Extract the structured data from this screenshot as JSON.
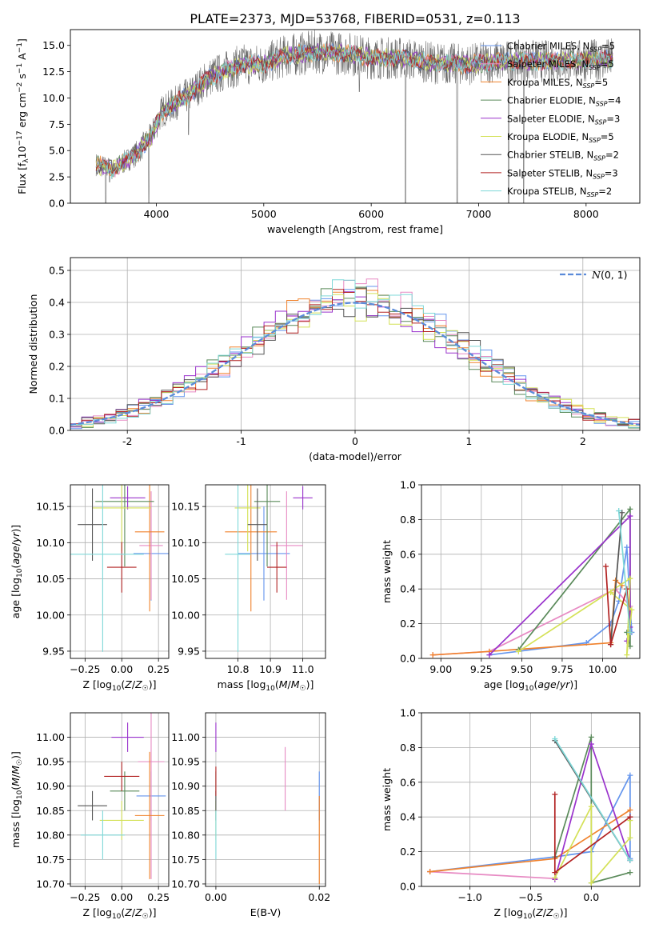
{
  "figure_title": "PLATE=2373, MJD=53768, FIBERID=0531, z=0.113",
  "colors": {
    "Chabrier MILES": "#6495ed",
    "Salpeter MILES": "#e78ac3",
    "Kroupa MILES": "#f0822d",
    "Chabrier ELODIE": "#5a8a5a",
    "Salpeter ELODIE": "#9932cc",
    "Kroupa ELODIE": "#d4e157",
    "Chabrier STELIB": "#555555",
    "Salpeter STELIB": "#b22222",
    "Kroupa STELIB": "#7fd8d8",
    "gaussian": "#5b8bd9"
  },
  "chart_data": [
    {
      "id": "spectrum",
      "type": "line",
      "title": "PLATE=2373, MJD=53768, FIBERID=0531, z=0.113",
      "xlabel": "wavelength [Angstrom, rest frame]",
      "ylabel": "Flux [f_λ 10^-17 erg cm^-2 s^-1 A^-1]",
      "xlim": [
        3200,
        8500
      ],
      "ylim": [
        0,
        16.5
      ],
      "xticks": [
        4000,
        5000,
        6000,
        7000,
        8000
      ],
      "yticks": [
        0.0,
        2.5,
        5.0,
        7.5,
        10.0,
        12.5,
        15.0
      ],
      "continuum_x": [
        3440,
        3600,
        3800,
        3950,
        4050,
        4300,
        4500,
        4800,
        5000,
        5200,
        5500,
        5800,
        6000,
        6300,
        6600,
        6900,
        7200,
        7500,
        7800,
        8100,
        8250
      ],
      "continuum_y": [
        3.7,
        3.2,
        4.6,
        6.3,
        8.7,
        10.3,
        12.0,
        13.2,
        13.2,
        14.0,
        14.4,
        14.2,
        13.8,
        13.8,
        13.3,
        13.2,
        13.5,
        13.5,
        13.5,
        13.6,
        13.7
      ],
      "dips": [
        [
          3530,
          0.0
        ],
        [
          3565,
          2.0
        ],
        [
          3930,
          0.0
        ],
        [
          4300,
          6.5
        ],
        [
          5890,
          10.6
        ],
        [
          6320,
          0.0
        ],
        [
          6800,
          0.0
        ],
        [
          7280,
          0.0
        ],
        [
          7420,
          0.0
        ]
      ],
      "legend": [
        {
          "label": "Chabrier MILES, N",
          "sub": "SSP",
          "n": "=5"
        },
        {
          "label": "Salpeter MILES, N",
          "sub": "SSP",
          "n": "=5"
        },
        {
          "label": "Kroupa MILES, N",
          "sub": "SSP",
          "n": "=5"
        },
        {
          "label": "Chabrier ELODIE, N",
          "sub": "SSP",
          "n": "=4"
        },
        {
          "label": "Salpeter ELODIE, N",
          "sub": "SSP",
          "n": "=3"
        },
        {
          "label": "Kroupa ELODIE, N",
          "sub": "SSP",
          "n": "=5"
        },
        {
          "label": "Chabrier STELIB, N",
          "sub": "SSP",
          "n": "=2"
        },
        {
          "label": "Salpeter STELIB, N",
          "sub": "SSP",
          "n": "=3"
        },
        {
          "label": "Kroupa STELIB, N",
          "sub": "SSP",
          "n": "=2"
        }
      ],
      "legend_placement": "right"
    },
    {
      "id": "residuals",
      "type": "step",
      "xlabel": "(data-model)/error",
      "ylabel": "Normed distribution",
      "xlim": [
        -2.5,
        2.5
      ],
      "ylim": [
        0,
        0.54
      ],
      "xticks": [
        -2,
        -1,
        0,
        1,
        2
      ],
      "yticks": [
        0.0,
        0.1,
        0.2,
        0.3,
        0.4,
        0.5
      ],
      "grid": true,
      "legend": "$\\mathcal{N}(0,1)$",
      "legend_placement": "top-right",
      "bin_width": 0.1
    },
    {
      "id": "age-vs-Z",
      "type": "errorbar",
      "xlabel": "Z [log10(Z/Z☉)]",
      "ylabel": "age [log10(age/yr)]",
      "xlim": [
        -0.35,
        0.32
      ],
      "ylim": [
        9.94,
        10.18
      ],
      "xticks": [
        -0.25,
        0.0,
        0.25
      ],
      "xticklabels": [
        "−0.25",
        "0.00",
        "0.25"
      ],
      "yticks": [
        9.95,
        10.0,
        10.05,
        10.1,
        10.15
      ],
      "grid": true,
      "points": [
        {
          "s": "Chabrier MILES",
          "x": 0.2,
          "y": 10.085,
          "xe": 0.12,
          "ye": 0.065
        },
        {
          "s": "Salpeter MILES",
          "x": 0.2,
          "y": 10.096,
          "xe": 0.08,
          "ye": 0.075
        },
        {
          "s": "Kroupa MILES",
          "x": 0.19,
          "y": 10.115,
          "xe": 0.1,
          "ye": 0.11
        },
        {
          "s": "Chabrier ELODIE",
          "x": 0.02,
          "y": 10.157,
          "xe": 0.2,
          "ye": 0.09
        },
        {
          "s": "Salpeter ELODIE",
          "x": 0.04,
          "y": 10.162,
          "xe": 0.12,
          "ye": 0.016
        },
        {
          "s": "Kroupa ELODIE",
          "x": 0.0,
          "y": 10.148,
          "xe": 0.2,
          "ye": 0.06
        },
        {
          "s": "Chabrier STELIB",
          "x": -0.2,
          "y": 10.125,
          "xe": 0.1,
          "ye": 0.05
        },
        {
          "s": "Salpeter STELIB",
          "x": 0.0,
          "y": 10.066,
          "xe": 0.1,
          "ye": 0.035
        },
        {
          "s": "Kroupa STELIB",
          "x": -0.13,
          "y": 10.084,
          "xe": 0.28,
          "ye": 0.135
        }
      ]
    },
    {
      "id": "age-vs-mass",
      "type": "errorbar",
      "xlabel": "mass [log10(M/M☉)]",
      "ylabel": "",
      "xlim": [
        10.7,
        11.07
      ],
      "ylim": [
        9.94,
        10.18
      ],
      "xticks": [
        10.8,
        10.9,
        11.0
      ],
      "xticklabels": [
        "10.8",
        "10.9",
        "11.0"
      ],
      "yticks": [
        9.95,
        10.0,
        10.05,
        10.1,
        10.15
      ],
      "grid": true,
      "points": [
        {
          "s": "Chabrier MILES",
          "x": 10.88,
          "y": 10.085,
          "xe": 0.08,
          "ye": 0.065
        },
        {
          "s": "Salpeter MILES",
          "x": 10.95,
          "y": 10.096,
          "xe": 0.05,
          "ye": 0.075
        },
        {
          "s": "Kroupa MILES",
          "x": 10.84,
          "y": 10.115,
          "xe": 0.08,
          "ye": 0.11
        },
        {
          "s": "Chabrier ELODIE",
          "x": 10.89,
          "y": 10.157,
          "xe": 0.04,
          "ye": 0.09
        },
        {
          "s": "Salpeter ELODIE",
          "x": 11.0,
          "y": 10.162,
          "xe": 0.03,
          "ye": 0.016
        },
        {
          "s": "Kroupa ELODIE",
          "x": 10.83,
          "y": 10.148,
          "xe": 0.04,
          "ye": 0.06
        },
        {
          "s": "Chabrier STELIB",
          "x": 10.86,
          "y": 10.125,
          "xe": 0.03,
          "ye": 0.05
        },
        {
          "s": "Salpeter STELIB",
          "x": 10.92,
          "y": 10.066,
          "xe": 0.03,
          "ye": 0.035
        },
        {
          "s": "Kroupa STELIB",
          "x": 10.8,
          "y": 10.084,
          "xe": 0.04,
          "ye": 0.135
        }
      ]
    },
    {
      "id": "weight-vs-age",
      "type": "line",
      "xlabel": "age [log10(age/yr)]",
      "ylabel": "mass weight",
      "xlim": [
        8.88,
        10.23
      ],
      "ylim": [
        0.0,
        1.0
      ],
      "xticks": [
        9.0,
        9.25,
        9.5,
        9.75,
        10.0
      ],
      "xticklabels": [
        "9.00",
        "9.25",
        "9.50",
        "9.75",
        "10.00"
      ],
      "yticks": [
        0.0,
        0.2,
        0.4,
        0.6,
        0.8,
        1.0
      ],
      "grid": true,
      "series": [
        {
          "s": "Chabrier MILES",
          "x": [
            9.3,
            9.9,
            10.05,
            10.1,
            10.15,
            10.18
          ],
          "y": [
            0.02,
            0.09,
            0.2,
            0.33,
            0.64,
            0.15
          ]
        },
        {
          "s": "Salpeter MILES",
          "x": [
            8.95,
            9.3,
            10.08,
            10.17
          ],
          "y": [
            0.02,
            0.04,
            0.4,
            0.3
          ]
        },
        {
          "s": "Kroupa MILES",
          "x": [
            8.95,
            9.3,
            10.05,
            10.08,
            10.12
          ],
          "y": [
            0.02,
            0.04,
            0.09,
            0.45,
            0.42
          ]
        },
        {
          "s": "Chabrier ELODIE",
          "x": [
            9.48,
            10.17,
            10.17,
            10.15
          ],
          "y": [
            0.05,
            0.86,
            0.07,
            0.15
          ]
        },
        {
          "s": "Salpeter ELODIE",
          "x": [
            9.3,
            10.17,
            10.17,
            10.15
          ],
          "y": [
            0.02,
            0.82,
            0.18,
            0.1
          ]
        },
        {
          "s": "Kroupa ELODIE",
          "x": [
            9.48,
            10.17,
            10.15,
            10.18,
            10.05
          ],
          "y": [
            0.04,
            0.46,
            0.02,
            0.28,
            0.38
          ]
        },
        {
          "s": "Chabrier STELIB",
          "x": [
            10.05,
            10.12
          ],
          "y": [
            0.08,
            0.84
          ]
        },
        {
          "s": "Salpeter STELIB",
          "x": [
            10.02,
            10.05,
            10.15,
            10.17
          ],
          "y": [
            0.53,
            0.08,
            0.4,
            0.15
          ]
        },
        {
          "s": "Kroupa STELIB",
          "x": [
            10.1,
            10.17
          ],
          "y": [
            0.85,
            0.15
          ]
        }
      ]
    },
    {
      "id": "mass-vs-Z",
      "type": "errorbar",
      "xlabel": "Z [log10(Z/Z☉)]",
      "ylabel": "mass [log10(M/M☉)]",
      "xlim": [
        -0.35,
        0.32
      ],
      "ylim": [
        10.695,
        11.05
      ],
      "xticks": [
        -0.25,
        0.0,
        0.25
      ],
      "xticklabels": [
        "−0.25",
        "0.00",
        "0.25"
      ],
      "yticks": [
        10.7,
        10.75,
        10.8,
        10.85,
        10.9,
        10.95,
        11.0
      ],
      "grid": true,
      "points": [
        {
          "s": "Chabrier MILES",
          "x": 0.2,
          "y": 10.88,
          "xe": 0.1,
          "ye": 0.05
        },
        {
          "s": "Salpeter MILES",
          "x": 0.2,
          "y": 10.95,
          "xe": 0.09,
          "ye": 0.24
        },
        {
          "s": "Kroupa MILES",
          "x": 0.19,
          "y": 10.84,
          "xe": 0.1,
          "ye": 0.13
        },
        {
          "s": "Chabrier ELODIE",
          "x": 0.02,
          "y": 10.89,
          "xe": 0.1,
          "ye": 0.04
        },
        {
          "s": "Salpeter ELODIE",
          "x": 0.04,
          "y": 11.0,
          "xe": 0.11,
          "ye": 0.03
        },
        {
          "s": "Kroupa ELODIE",
          "x": 0.0,
          "y": 10.83,
          "xe": 0.15,
          "ye": 0.04
        },
        {
          "s": "Chabrier STELIB",
          "x": -0.2,
          "y": 10.86,
          "xe": 0.1,
          "ye": 0.03
        },
        {
          "s": "Salpeter STELIB",
          "x": 0.0,
          "y": 10.92,
          "xe": 0.12,
          "ye": 0.03
        },
        {
          "s": "Kroupa STELIB",
          "x": -0.13,
          "y": 10.8,
          "xe": 0.15,
          "ye": 0.05
        }
      ]
    },
    {
      "id": "mass-vs-ebv",
      "type": "errorbar",
      "xlabel": "E(B-V)",
      "ylabel": "",
      "xlim": [
        -0.002,
        0.0212
      ],
      "ylim": [
        10.695,
        11.05
      ],
      "xticks": [
        0.0,
        0.02
      ],
      "xticklabels": [
        "0.00",
        "0.02"
      ],
      "yticks": [
        10.7,
        10.75,
        10.8,
        10.85,
        10.9,
        10.95,
        11.0
      ],
      "grid": true,
      "points": [
        {
          "s": "Chabrier MILES",
          "x": 0.02,
          "y": 10.88,
          "xe": 0,
          "ye": 0.05
        },
        {
          "s": "Salpeter MILES",
          "x": 0.0134,
          "y": 10.915,
          "xe": 0,
          "ye": 0.065
        },
        {
          "s": "Kroupa MILES",
          "x": 0.02,
          "y": 10.79,
          "xe": 0,
          "ye": 0.09
        },
        {
          "s": "Chabrier ELODIE",
          "x": 0.0,
          "y": 10.89,
          "xe": 0,
          "ye": 0.04
        },
        {
          "s": "Salpeter ELODIE",
          "x": 0.0,
          "y": 11.0,
          "xe": 0,
          "ye": 0.03
        },
        {
          "s": "Kroupa ELODIE",
          "x": 0.0,
          "y": 10.83,
          "xe": 0,
          "ye": 0.04
        },
        {
          "s": "Chabrier STELIB",
          "x": 0.0,
          "y": 10.86,
          "xe": 0,
          "ye": 0.03
        },
        {
          "s": "Salpeter STELIB",
          "x": 0.0,
          "y": 10.91,
          "xe": 0,
          "ye": 0.03
        },
        {
          "s": "Kroupa STELIB",
          "x": 0.0,
          "y": 10.8,
          "xe": 0,
          "ye": 0.05
        }
      ]
    },
    {
      "id": "weight-vs-Z",
      "type": "line",
      "xlabel": "Z [log10(Z/Z☉)]",
      "ylabel": "mass weight",
      "xlim": [
        -1.4,
        0.4
      ],
      "ylim": [
        0.0,
        1.0
      ],
      "xticks": [
        -1.0,
        -0.5,
        0.0
      ],
      "xticklabels": [
        "−1.0",
        "−0.5",
        "0.0"
      ],
      "yticks": [
        0.0,
        0.2,
        0.4,
        0.6,
        0.8,
        1.0
      ],
      "grid": true,
      "series": [
        {
          "s": "Chabrier MILES",
          "x": [
            -1.33,
            -0.3,
            0.0,
            0.32,
            0.32
          ],
          "y": [
            0.085,
            0.17,
            0.2,
            0.64,
            0.16
          ]
        },
        {
          "s": "Salpeter MILES",
          "x": [
            -1.33,
            -0.3
          ],
          "y": [
            0.085,
            0.045
          ]
        },
        {
          "s": "Kroupa MILES",
          "x": [
            -1.33,
            -0.3,
            0.32
          ],
          "y": [
            0.085,
            0.16,
            0.44
          ]
        },
        {
          "s": "Chabrier ELODIE",
          "x": [
            -0.3,
            0.0,
            0.0,
            0.32
          ],
          "y": [
            0.17,
            0.86,
            0.02,
            0.08
          ]
        },
        {
          "s": "Salpeter ELODIE",
          "x": [
            -0.3,
            0.0,
            0.32
          ],
          "y": [
            0.04,
            0.82,
            0.15
          ]
        },
        {
          "s": "Kroupa ELODIE",
          "x": [
            -0.3,
            0.0,
            0.0,
            0.32,
            0.32
          ],
          "y": [
            0.05,
            0.46,
            0.02,
            0.28,
            0.38
          ]
        },
        {
          "s": "Chabrier STELIB",
          "x": [
            -0.3,
            0.32
          ],
          "y": [
            0.84,
            0.15
          ]
        },
        {
          "s": "Salpeter STELIB",
          "x": [
            -0.3,
            -0.3,
            0.32
          ],
          "y": [
            0.53,
            0.08,
            0.4
          ]
        },
        {
          "s": "Kroupa STELIB",
          "x": [
            -0.3,
            0.32
          ],
          "y": [
            0.85,
            0.15
          ]
        }
      ]
    }
  ]
}
